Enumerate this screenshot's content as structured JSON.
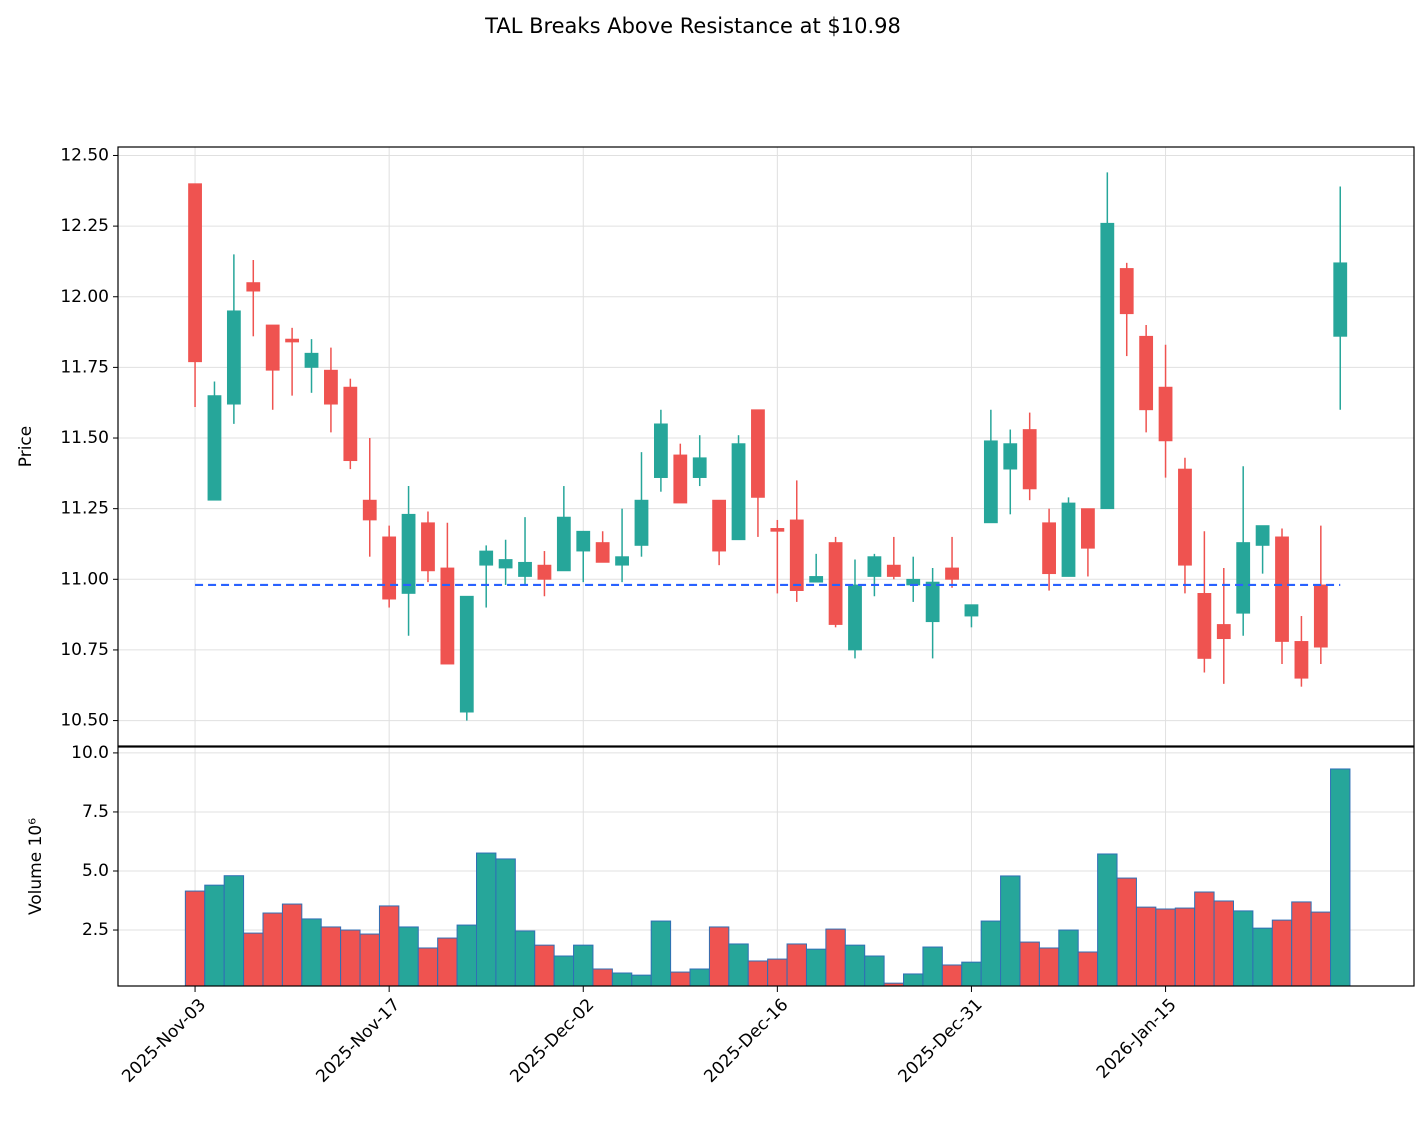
{
  "chart_data": {
    "type": "candlestick",
    "title": "TAL Breaks Above Resistance at $10.98",
    "ylabel": "Price",
    "open": [
      12.4,
      11.28,
      11.62,
      12.05,
      11.9,
      11.85,
      11.75,
      11.74,
      11.68,
      11.28,
      11.15,
      10.95,
      11.2,
      11.04,
      10.53,
      11.05,
      11.04,
      11.01,
      11.05,
      11.03,
      11.1,
      11.13,
      11.05,
      11.12,
      11.36,
      11.44,
      11.36,
      11.28,
      11.14,
      11.6,
      11.18,
      11.21,
      10.99,
      11.13,
      10.75,
      11.01,
      11.05,
      10.98,
      10.85,
      11.04,
      10.87,
      11.2,
      11.39,
      11.53,
      11.2,
      11.01,
      11.25,
      11.25,
      12.1,
      11.86,
      11.68,
      11.39,
      10.95,
      10.84,
      10.88,
      11.12,
      11.15,
      10.78,
      10.98,
      11.86
    ],
    "high": [
      12.4,
      11.7,
      12.15,
      12.13,
      11.9,
      11.89,
      11.85,
      11.82,
      11.71,
      11.5,
      11.19,
      11.33,
      11.24,
      11.2,
      10.94,
      11.12,
      11.14,
      11.22,
      11.1,
      11.33,
      11.17,
      11.17,
      11.25,
      11.45,
      11.6,
      11.48,
      11.51,
      11.28,
      11.51,
      11.6,
      11.21,
      11.35,
      11.09,
      11.15,
      11.07,
      11.09,
      11.15,
      11.08,
      11.04,
      11.15,
      10.91,
      11.6,
      11.53,
      11.59,
      11.25,
      11.29,
      11.25,
      12.44,
      12.12,
      11.9,
      11.83,
      11.43,
      11.17,
      11.04,
      11.4,
      11.19,
      11.18,
      10.87,
      11.19,
      12.39
    ],
    "low": [
      11.61,
      11.28,
      11.55,
      11.86,
      11.6,
      11.65,
      11.66,
      11.52,
      11.39,
      11.08,
      10.9,
      10.8,
      10.99,
      10.7,
      10.5,
      10.9,
      10.98,
      10.98,
      10.94,
      11.03,
      10.99,
      11.06,
      10.99,
      11.08,
      11.31,
      11.27,
      11.33,
      11.05,
      11.14,
      11.15,
      10.95,
      10.92,
      10.99,
      10.83,
      10.72,
      10.94,
      11.0,
      10.92,
      10.72,
      10.97,
      10.83,
      11.2,
      11.23,
      11.28,
      10.96,
      11.01,
      11.01,
      11.25,
      11.79,
      11.52,
      11.36,
      10.95,
      10.67,
      10.63,
      10.8,
      11.02,
      10.7,
      10.62,
      10.7,
      11.6
    ],
    "close": [
      11.77,
      11.65,
      11.95,
      12.02,
      11.74,
      11.84,
      11.8,
      11.62,
      11.42,
      11.21,
      10.93,
      11.23,
      11.03,
      10.7,
      10.94,
      11.1,
      11.07,
      11.06,
      11.0,
      11.22,
      11.17,
      11.06,
      11.08,
      11.28,
      11.55,
      11.27,
      11.43,
      11.1,
      11.48,
      11.29,
      11.17,
      10.96,
      11.01,
      10.84,
      10.98,
      11.08,
      11.01,
      11.0,
      10.99,
      11.0,
      10.91,
      11.49,
      11.48,
      11.32,
      11.02,
      11.27,
      11.11,
      12.26,
      11.94,
      11.6,
      11.49,
      11.05,
      10.72,
      10.79,
      11.13,
      11.19,
      10.78,
      10.65,
      10.76,
      12.12
    ],
    "xlim": [
      -3.97,
      62.8
    ],
    "xticks": [
      {
        "value": 0,
        "label": "2025-Nov-03"
      },
      {
        "value": 10,
        "label": "2025-Nov-17"
      },
      {
        "value": 20,
        "label": "2025-Dec-02"
      },
      {
        "value": 30,
        "label": "2025-Dec-16"
      },
      {
        "value": 40,
        "label": "2025-Dec-31"
      },
      {
        "value": 50,
        "label": "2026-Jan-15"
      }
    ],
    "ylim": [
      10.41,
      12.53
    ],
    "yticks": [
      {
        "value": 10.5,
        "label": "10.50"
      },
      10.75,
      {
        "value": 11,
        "label": "11.00"
      },
      11.25,
      {
        "value": 11.5,
        "label": "11.50"
      },
      11.75,
      {
        "value": 12,
        "label": "12.00"
      },
      12.25,
      {
        "value": 12.5,
        "label": "12.50"
      }
    ],
    "grid": true,
    "up_color": "#26a69a",
    "down_color": "#ef5350",
    "resistance": {
      "value": 10.98,
      "color": "#2962ff"
    },
    "volume": {
      "ylabel": "Volume  10⁶",
      "edge_color": "#2f6fb5",
      "ylim": [
        0.13,
        10.25
      ],
      "yticks": [
        2.5,
        {
          "value": 5,
          "label": "5.0"
        },
        7.5,
        {
          "value": 10,
          "label": "10.0"
        }
      ],
      "values": [
        4.15,
        4.4,
        4.8,
        2.37,
        3.22,
        3.6,
        2.97,
        2.63,
        2.5,
        2.33,
        3.52,
        2.63,
        1.74,
        2.16,
        2.71,
        5.76,
        5.51,
        2.46,
        1.86,
        1.4,
        1.86,
        0.85,
        0.68,
        0.59,
        2.88,
        0.72,
        0.85,
        2.63,
        1.91,
        1.19,
        1.27,
        1.91,
        1.69,
        2.54,
        1.86,
        1.4,
        0.25,
        0.64,
        1.78,
        1.02,
        1.14,
        2.88,
        4.79,
        1.99,
        1.74,
        2.5,
        1.57,
        5.72,
        4.7,
        3.47,
        3.39,
        3.43,
        4.11,
        3.73,
        3.31,
        2.58,
        2.92,
        3.69,
        3.26,
        9.32
      ]
    }
  }
}
